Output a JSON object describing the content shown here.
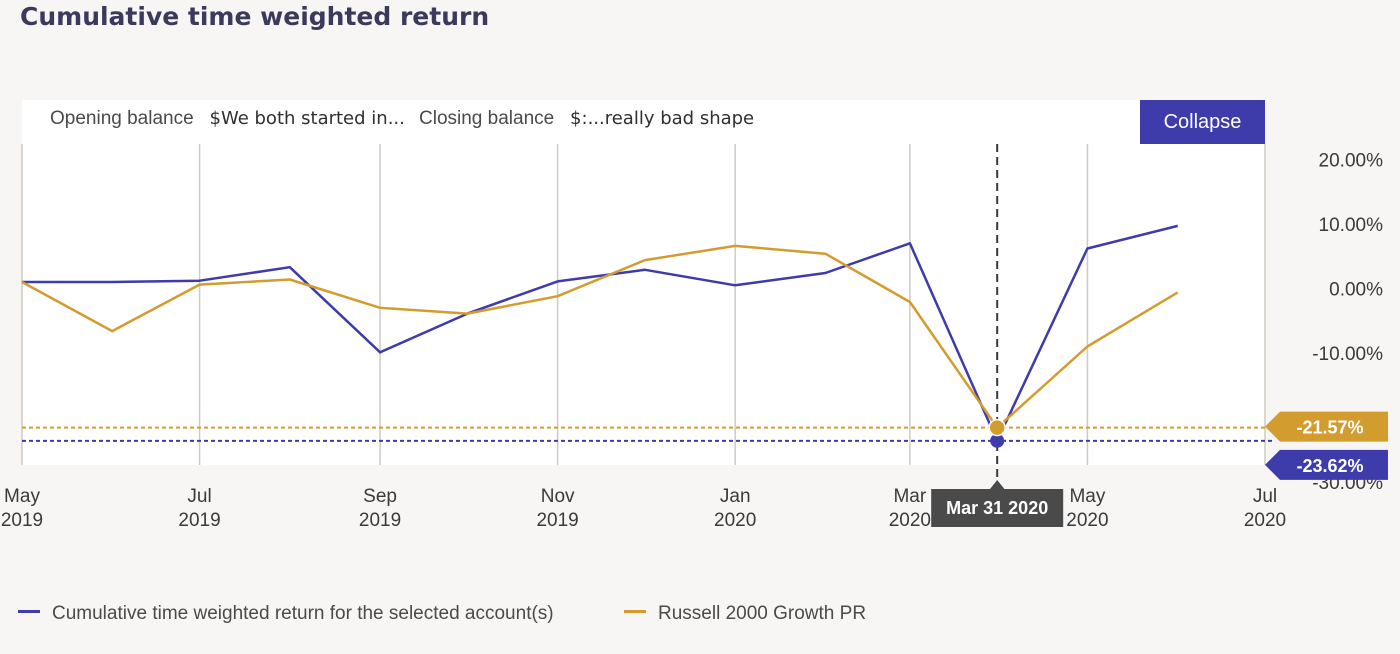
{
  "colors": {
    "account": "#3e3bab",
    "benchmark": "#d39c2f",
    "grid": "#cfcbc4",
    "tooltip": "#4a4a4a"
  },
  "header": {
    "title": "Cumulative time weighted return"
  },
  "summary": {
    "opening_label": "Opening balance",
    "opening_value": "$We both started in...",
    "closing_label": "Closing balance",
    "closing_value": "$:...really bad shape",
    "collapse_label": "Collapse"
  },
  "chart_data": {
    "type": "line",
    "x_dates": [
      "2019-05-01",
      "2019-06-01",
      "2019-07-01",
      "2019-08-01",
      "2019-09-01",
      "2019-10-01",
      "2019-11-01",
      "2019-12-01",
      "2020-01-01",
      "2020-02-01",
      "2020-03-01",
      "2020-03-31",
      "2020-05-01",
      "2020-06-01"
    ],
    "series": [
      {
        "name": "Cumulative time weighted return for the selected account(s)",
        "color": "#3e3bab",
        "values": [
          1.0,
          1.0,
          1.2,
          3.3,
          -9.9,
          -3.9,
          1.1,
          2.9,
          0.5,
          2.4,
          7.0,
          -23.62,
          6.2,
          9.7
        ]
      },
      {
        "name": "Russell 2000 Growth PR",
        "color": "#d39c2f",
        "values": [
          1.0,
          -6.6,
          0.6,
          1.4,
          -3.0,
          -3.9,
          -1.2,
          4.4,
          6.6,
          5.4,
          -2.1,
          -21.57,
          -9.0,
          -0.6
        ]
      }
    ],
    "y_ticks": [
      "20.00%",
      "10.00%",
      "0.00%",
      "-10.00%",
      "-30.00%"
    ],
    "y_tick_values": [
      20,
      10,
      0,
      -10,
      -30
    ],
    "ylim": [
      -30,
      20
    ],
    "x_ticks": [
      {
        "month": "May",
        "year": "2019",
        "date": "2019-05-01"
      },
      {
        "month": "Jul",
        "year": "2019",
        "date": "2019-07-01"
      },
      {
        "month": "Sep",
        "year": "2019",
        "date": "2019-09-01"
      },
      {
        "month": "Nov",
        "year": "2019",
        "date": "2019-11-01"
      },
      {
        "month": "Jan",
        "year": "2020",
        "date": "2020-01-01"
      },
      {
        "month": "Mar",
        "year": "2020",
        "date": "2020-03-01"
      },
      {
        "month": "May",
        "year": "2020",
        "date": "2020-05-01"
      },
      {
        "month": "Jul",
        "year": "2020",
        "date": "2020-07-01"
      }
    ],
    "xlim": [
      "2019-05-01",
      "2020-07-01"
    ],
    "grid": true,
    "cursor": {
      "date": "2020-03-31",
      "label": "Mar 31 2020",
      "account_label": "-23.62%",
      "benchmark_label": "-21.57%"
    },
    "legend_position": "bottom-left"
  }
}
